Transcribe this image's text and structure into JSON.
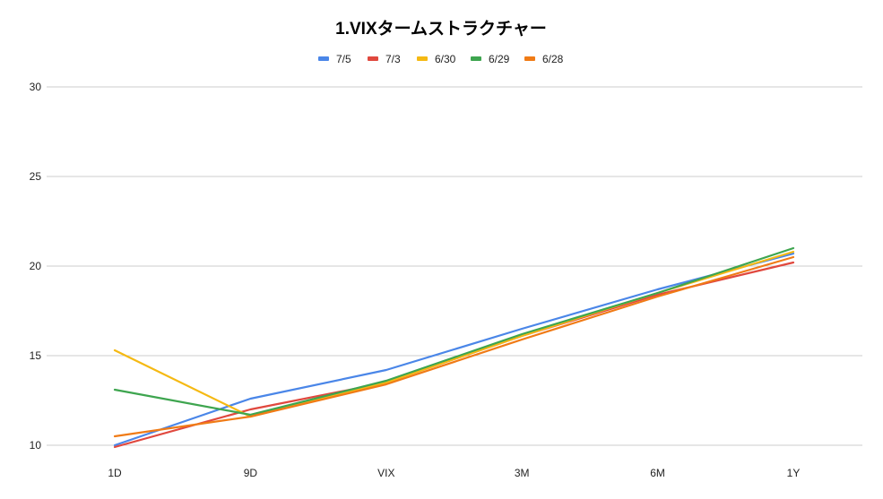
{
  "chart_data": {
    "type": "line",
    "title": "1.VIXタームストラクチャー",
    "xlabel": "",
    "ylabel": "",
    "categories": [
      "1D",
      "9D",
      "VIX",
      "3M",
      "6M",
      "1Y"
    ],
    "ylim": [
      10,
      30
    ],
    "yticks": [
      10,
      15,
      20,
      25,
      30
    ],
    "grid": true,
    "legend_position": "top",
    "series": [
      {
        "name": "7/5",
        "color": "#4a86e8",
        "values": [
          10.0,
          12.6,
          14.2,
          16.5,
          18.7,
          20.7
        ]
      },
      {
        "name": "7/3",
        "color": "#e0483e",
        "values": [
          9.9,
          12.0,
          13.5,
          16.1,
          18.4,
          20.2
        ]
      },
      {
        "name": "6/30",
        "color": "#f5b913",
        "values": [
          15.3,
          11.6,
          13.5,
          16.1,
          18.5,
          20.8
        ]
      },
      {
        "name": "6/29",
        "color": "#3ea54f",
        "values": [
          13.1,
          11.7,
          13.6,
          16.2,
          18.5,
          21.0
        ]
      },
      {
        "name": "6/28",
        "color": "#f07b16",
        "values": [
          10.5,
          11.6,
          13.4,
          15.9,
          18.3,
          20.5
        ]
      }
    ]
  }
}
